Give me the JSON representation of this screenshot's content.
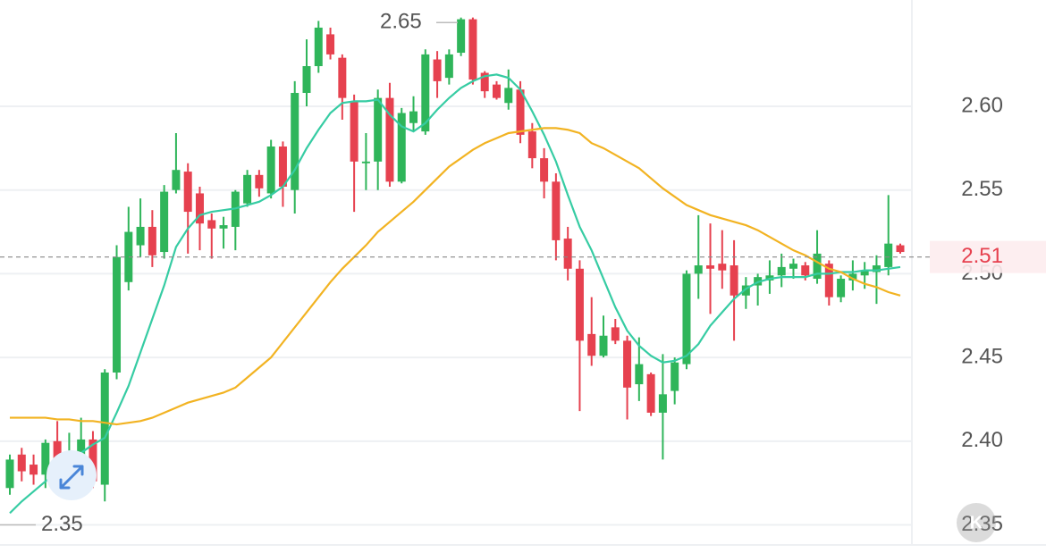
{
  "chart_data": {
    "type": "candlestick",
    "open": [
      2.372,
      2.392,
      2.386,
      2.38,
      2.4,
      2.384,
      2.392,
      2.401,
      2.374,
      2.441,
      2.495,
      2.517,
      2.528,
      2.513,
      2.55,
      2.561,
      2.548,
      2.532,
      2.527,
      2.528,
      2.542,
      2.559,
      2.548,
      2.576,
      2.55,
      2.608,
      2.624,
      2.643,
      2.629,
      2.603,
      2.566,
      2.567,
      2.605,
      2.555,
      2.59,
      2.585,
      2.628,
      2.617,
      2.632,
      2.652,
      2.62,
      2.613,
      2.602,
      2.61,
      2.585,
      2.569,
      2.555,
      2.521,
      2.503,
      2.464,
      2.451,
      2.468,
      2.46,
      2.434,
      2.44,
      2.417,
      2.43,
      2.446,
      2.5,
      2.505,
      2.506,
      2.505,
      2.487,
      2.493,
      2.496,
      2.499,
      2.503,
      2.505,
      2.497,
      2.506,
      2.486,
      2.496,
      2.499,
      2.501,
      2.504,
      2.517
    ],
    "high": [
      2.392,
      2.396,
      2.392,
      2.401,
      2.412,
      2.405,
      2.414,
      2.406,
      2.443,
      2.517,
      2.54,
      2.545,
      2.538,
      2.553,
      2.584,
      2.566,
      2.552,
      2.536,
      2.534,
      2.55,
      2.562,
      2.562,
      2.58,
      2.579,
      2.615,
      2.64,
      2.651,
      2.647,
      2.631,
      2.607,
      2.584,
      2.61,
      2.614,
      2.599,
      2.606,
      2.634,
      2.633,
      2.634,
      2.653,
      2.653,
      2.621,
      2.615,
      2.622,
      2.615,
      2.59,
      2.575,
      2.56,
      2.528,
      2.508,
      2.486,
      2.475,
      2.473,
      2.463,
      2.462,
      2.441,
      2.452,
      2.45,
      2.502,
      2.535,
      2.53,
      2.526,
      2.52,
      2.498,
      2.5,
      2.508,
      2.512,
      2.509,
      2.507,
      2.526,
      2.508,
      2.499,
      2.508,
      2.507,
      2.511,
      2.547,
      2.518
    ],
    "low": [
      2.368,
      2.376,
      2.374,
      2.372,
      2.383,
      2.38,
      2.39,
      2.372,
      2.364,
      2.437,
      2.49,
      2.51,
      2.504,
      2.509,
      2.548,
      2.512,
      2.514,
      2.509,
      2.515,
      2.514,
      2.54,
      2.546,
      2.545,
      2.54,
      2.536,
      2.6,
      2.62,
      2.628,
      2.592,
      2.537,
      2.55,
      2.55,
      2.552,
      2.554,
      2.585,
      2.583,
      2.605,
      2.613,
      2.63,
      2.613,
      2.605,
      2.604,
      2.598,
      2.578,
      2.563,
      2.545,
      2.508,
      2.496,
      2.418,
      2.445,
      2.45,
      2.458,
      2.413,
      2.424,
      2.415,
      2.389,
      2.422,
      2.443,
      2.485,
      2.476,
      2.491,
      2.46,
      2.479,
      2.481,
      2.488,
      2.492,
      2.497,
      2.496,
      2.494,
      2.481,
      2.483,
      2.49,
      2.491,
      2.482,
      2.499,
      2.512
    ],
    "close": [
      2.389,
      2.382,
      2.38,
      2.399,
      2.386,
      2.393,
      2.401,
      2.376,
      2.441,
      2.51,
      2.525,
      2.528,
      2.511,
      2.549,
      2.562,
      2.537,
      2.53,
      2.527,
      2.529,
      2.549,
      2.559,
      2.551,
      2.576,
      2.552,
      2.608,
      2.624,
      2.647,
      2.631,
      2.605,
      2.567,
      2.567,
      2.605,
      2.555,
      2.596,
      2.597,
      2.631,
      2.615,
      2.631,
      2.652,
      2.616,
      2.609,
      2.605,
      2.611,
      2.583,
      2.569,
      2.555,
      2.52,
      2.503,
      2.46,
      2.451,
      2.463,
      2.46,
      2.432,
      2.446,
      2.417,
      2.428,
      2.447,
      2.5,
      2.505,
      2.503,
      2.502,
      2.487,
      2.493,
      2.498,
      2.499,
      2.504,
      2.506,
      2.499,
      2.512,
      2.486,
      2.497,
      2.5,
      2.502,
      2.505,
      2.518,
      2.513
    ],
    "up_color": "#2fb55a",
    "down_color": "#e6414f",
    "series": [
      {
        "color": "#36cca3",
        "values": [
          2.357,
          2.364,
          2.37,
          2.376,
          2.382,
          2.387,
          2.393,
          2.398,
          2.402,
          2.417,
          2.433,
          2.453,
          2.473,
          2.493,
          2.516,
          2.527,
          2.535,
          2.537,
          2.538,
          2.539,
          2.541,
          2.543,
          2.547,
          2.552,
          2.562,
          2.575,
          2.586,
          2.596,
          2.602,
          2.603,
          2.603,
          2.604,
          2.595,
          2.588,
          2.585,
          2.59,
          2.598,
          2.605,
          2.611,
          2.615,
          2.618,
          2.619,
          2.617,
          2.61,
          2.597,
          2.583,
          2.567,
          2.547,
          2.528,
          2.514,
          2.497,
          2.48,
          2.466,
          2.457,
          2.451,
          2.447,
          2.448,
          2.451,
          2.458,
          2.469,
          2.477,
          2.485,
          2.491,
          2.495,
          2.497,
          2.498,
          2.498,
          2.498,
          2.5,
          2.5,
          2.501,
          2.501,
          2.502,
          2.502,
          2.503,
          2.504
        ]
      },
      {
        "color": "#f2b322",
        "values": [
          2.414,
          2.414,
          2.414,
          2.414,
          2.413,
          2.413,
          2.412,
          2.412,
          2.411,
          2.41,
          2.411,
          2.412,
          2.414,
          2.417,
          2.42,
          2.423,
          2.425,
          2.427,
          2.429,
          2.432,
          2.438,
          2.444,
          2.45,
          2.459,
          2.468,
          2.477,
          2.486,
          2.495,
          2.503,
          2.51,
          2.517,
          2.525,
          2.531,
          2.537,
          2.543,
          2.55,
          2.557,
          2.564,
          2.569,
          2.574,
          2.578,
          2.581,
          2.584,
          2.585,
          2.586,
          2.587,
          2.587,
          2.586,
          2.584,
          2.578,
          2.575,
          2.571,
          2.567,
          2.563,
          2.557,
          2.551,
          2.546,
          2.541,
          2.538,
          2.535,
          2.533,
          2.531,
          2.529,
          2.526,
          2.522,
          2.518,
          2.514,
          2.511,
          2.507,
          2.503,
          2.501,
          2.497,
          2.494,
          2.492,
          2.489,
          2.487
        ]
      }
    ],
    "high_label": 2.65,
    "low_label": 2.35,
    "last_price": 2.51,
    "last_price_color": "#e6414f",
    "ylim": [
      2.3332,
      2.6635
    ],
    "yticks": [
      {
        "value": 2.6,
        "label": "2.60"
      },
      2.55,
      {
        "value": 2.5,
        "label": "2.50"
      },
      2.45,
      {
        "value": 2.4,
        "label": "2.40"
      },
      2.35
    ],
    "grid": true
  }
}
